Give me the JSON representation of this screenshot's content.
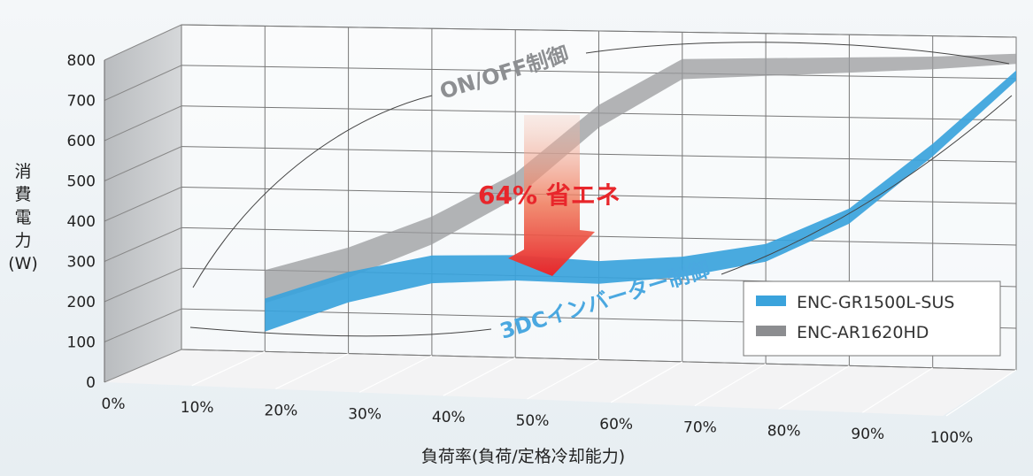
{
  "chart_data": {
    "type": "area",
    "xlabel": "負荷率(負荷/定格冷却能力)",
    "ylabel_chars": [
      "消",
      "費",
      "電",
      "力",
      "(W)"
    ],
    "ylim": [
      0,
      800
    ],
    "y_ticks": [
      "0",
      "100",
      "200",
      "300",
      "400",
      "500",
      "600",
      "700",
      "800"
    ],
    "categories": [
      "0%",
      "10%",
      "20%",
      "30%",
      "40%",
      "50%",
      "60%",
      "70%",
      "80%",
      "90%",
      "100%"
    ],
    "series": [
      {
        "name": "ENC-GR1500L-SUS",
        "color": "#3aa3dc",
        "x": [
          10,
          20,
          30,
          40,
          50,
          60,
          70,
          80,
          90,
          100
        ],
        "values": [
          130,
          200,
          245,
          250,
          240,
          255,
          290,
          380,
          540,
          720
        ]
      },
      {
        "name": "ENC-AR1620HD",
        "color": "#9a9b9e",
        "x": [
          10,
          20,
          30,
          40,
          50,
          60,
          70,
          80,
          90,
          100
        ],
        "values": [
          200,
          260,
          340,
          450,
          620,
          735,
          740,
          745,
          750,
          760
        ]
      }
    ],
    "annotations": {
      "onoff": "ON/OFF制御",
      "inverter": "3DCインバーター制御",
      "saving": "64% 省エネ"
    },
    "legend_position": "bottom-right",
    "grid": true
  }
}
